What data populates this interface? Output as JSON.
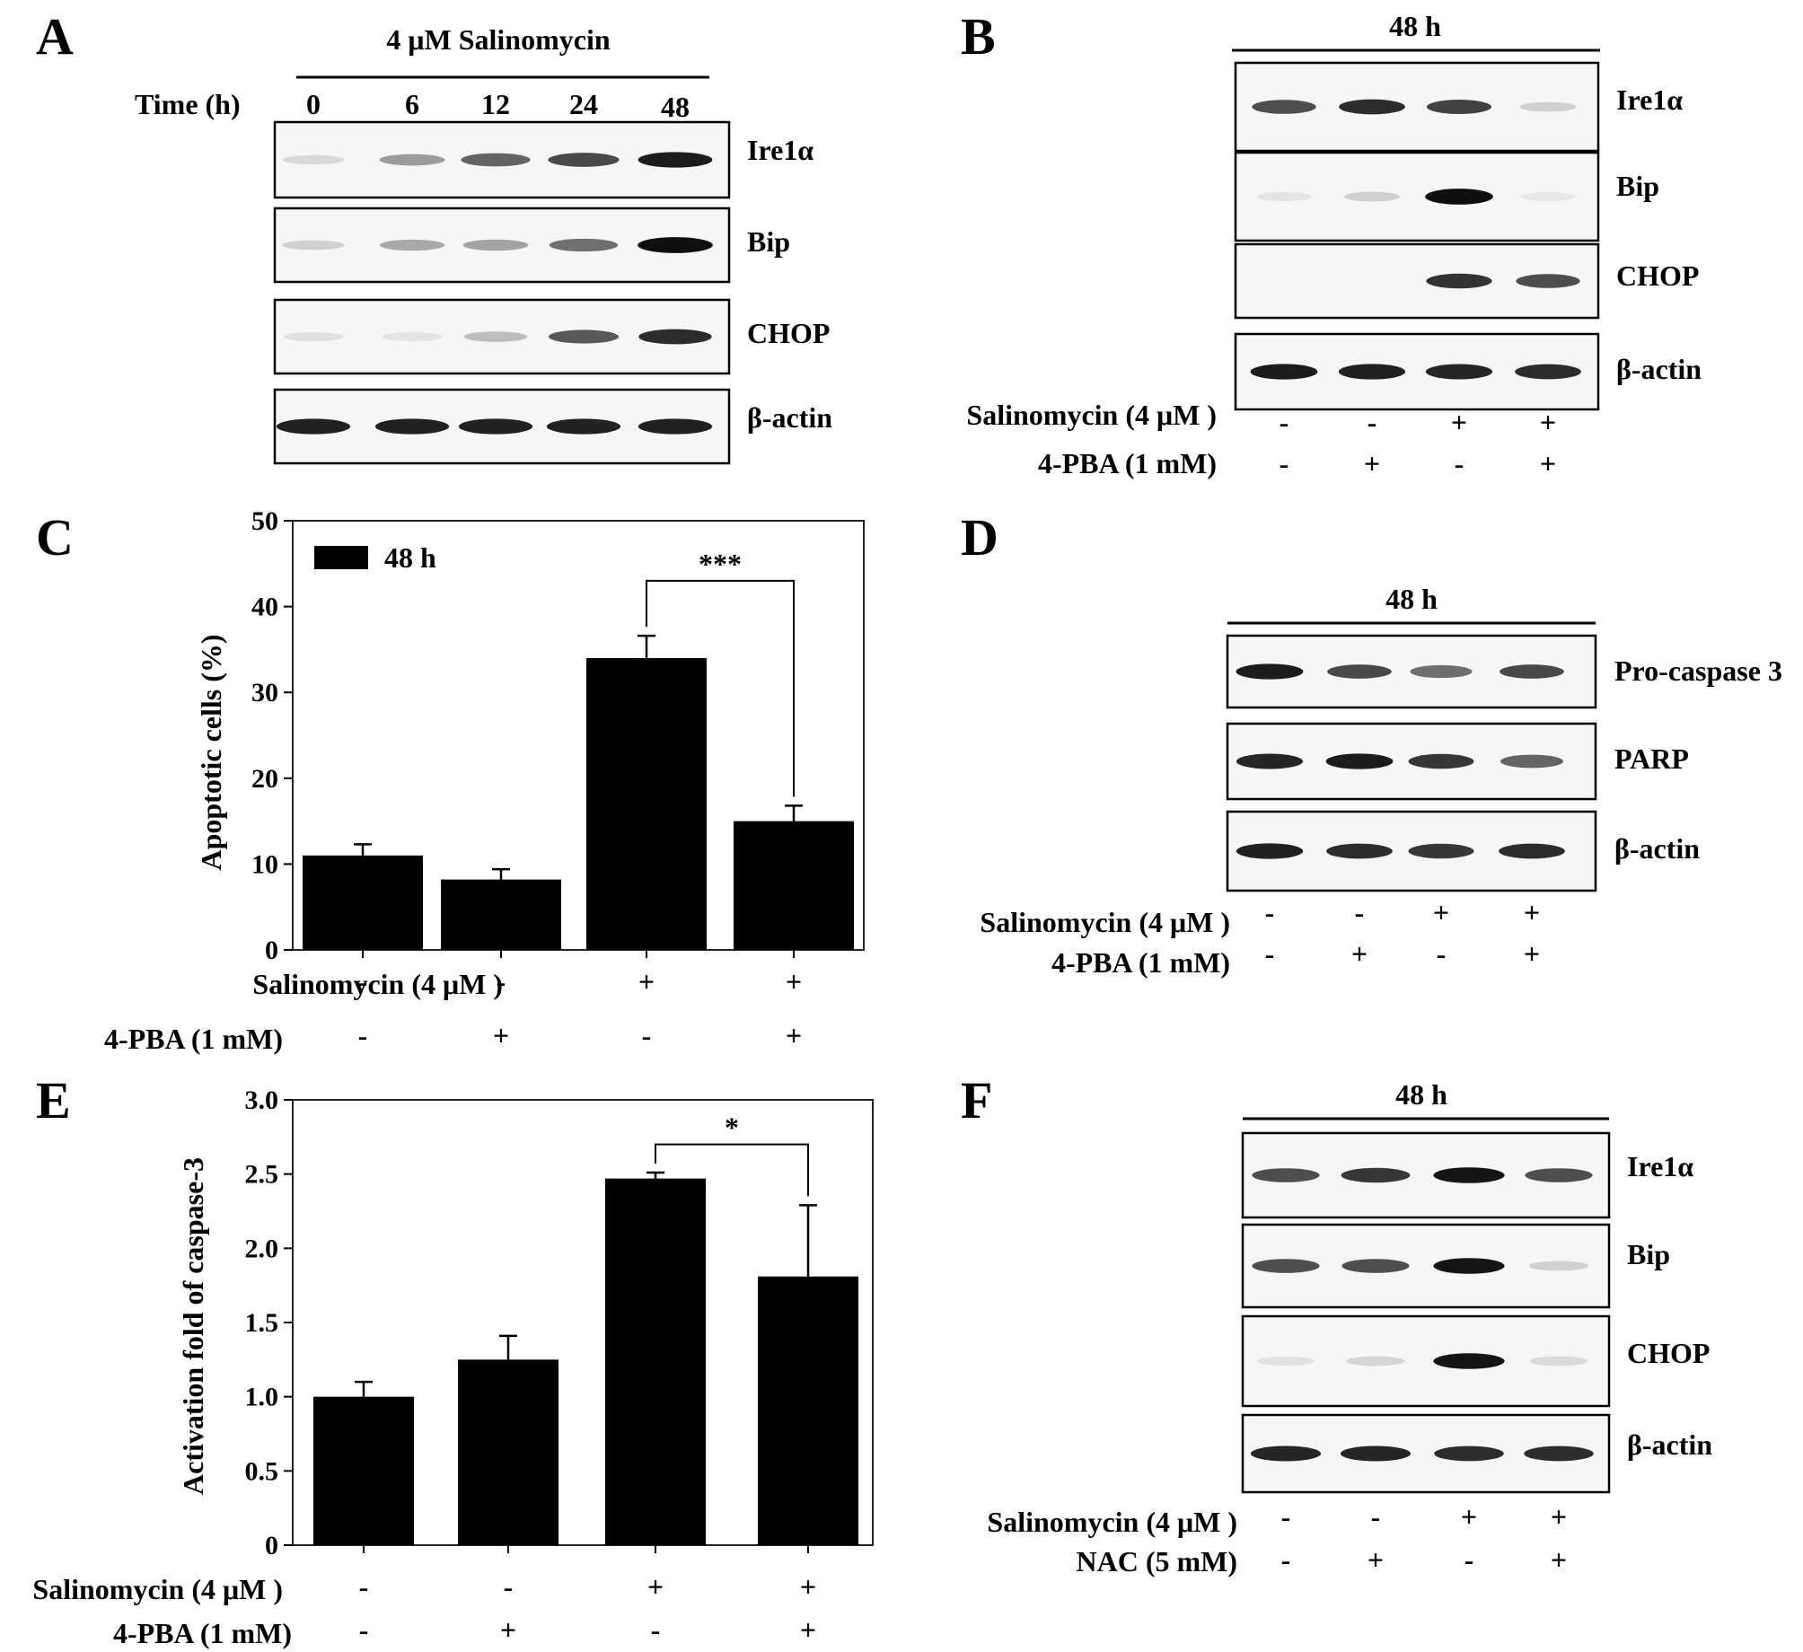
{
  "panels": {
    "A": {
      "letter": "A",
      "treatment": "4 μM  Salinomycin",
      "time_label": "Time (h)",
      "times": [
        "0",
        "6",
        "12",
        "24",
        "48"
      ],
      "rows": [
        "Ire1α",
        "Bip",
        "CHOP",
        "β-actin"
      ],
      "bands": [
        [
          0.08,
          0.35,
          0.6,
          0.72,
          0.92
        ],
        [
          0.12,
          0.3,
          0.32,
          0.55,
          0.98
        ],
        [
          0.05,
          0.03,
          0.2,
          0.65,
          0.85
        ],
        [
          0.9,
          0.9,
          0.9,
          0.9,
          0.9
        ]
      ]
    },
    "B": {
      "letter": "B",
      "time": "48 h",
      "rows": [
        "Ire1α",
        "Bip",
        "CHOP",
        "β-actin"
      ],
      "bands": [
        [
          0.7,
          0.85,
          0.75,
          0.12
        ],
        [
          0.03,
          0.12,
          0.98,
          0.02
        ],
        [
          0.0,
          0.0,
          0.82,
          0.7
        ],
        [
          0.92,
          0.9,
          0.88,
          0.85
        ]
      ],
      "treatments": [
        {
          "label": "Salinomycin (4 μM )",
          "signs": [
            "-",
            "-",
            "+",
            "+"
          ]
        },
        {
          "label": "4-PBA (1 mM)",
          "signs": [
            "-",
            "+",
            "-",
            "+"
          ]
        }
      ]
    },
    "C": {
      "letter": "C",
      "legend": "48 h",
      "significance": "***",
      "treatments": [
        {
          "label": "Salinomycin (4 μM )",
          "signs": [
            "-",
            "-",
            "+",
            "+"
          ]
        },
        {
          "label": "4-PBA (1 mM)",
          "signs": [
            "-",
            "+",
            "-",
            "+"
          ]
        }
      ]
    },
    "D": {
      "letter": "D",
      "time": "48 h",
      "rows": [
        "Pro-caspase 3",
        "PARP",
        "β-actin"
      ],
      "bands": [
        [
          0.92,
          0.72,
          0.55,
          0.72
        ],
        [
          0.88,
          0.92,
          0.8,
          0.6
        ],
        [
          0.9,
          0.85,
          0.8,
          0.85
        ]
      ],
      "treatments": [
        {
          "label": "Salinomycin (4 μM )",
          "signs": [
            "-",
            "-",
            "+",
            "+"
          ]
        },
        {
          "label": "4-PBA (1 mM)",
          "signs": [
            "-",
            "+",
            "-",
            "+"
          ]
        }
      ]
    },
    "E": {
      "letter": "E",
      "significance": "*",
      "treatments": [
        {
          "label": "Salinomycin (4 μM )",
          "signs": [
            "-",
            "-",
            "+",
            "+"
          ]
        },
        {
          "label": "4-PBA (1 mM)",
          "signs": [
            "-",
            "+",
            "-",
            "+"
          ]
        }
      ]
    },
    "F": {
      "letter": "F",
      "time": "48 h",
      "rows": [
        "Ire1α",
        "Bip",
        "CHOP",
        "β-actin"
      ],
      "bands": [
        [
          0.7,
          0.8,
          0.95,
          0.7
        ],
        [
          0.7,
          0.7,
          0.95,
          0.12
        ],
        [
          0.04,
          0.1,
          0.95,
          0.08
        ],
        [
          0.88,
          0.88,
          0.85,
          0.85
        ]
      ],
      "treatments": [
        {
          "label": "Salinomycin (4 μM )",
          "signs": [
            "-",
            "-",
            "+",
            "+"
          ]
        },
        {
          "label": "NAC (5 mM)",
          "signs": [
            "-",
            "+",
            "-",
            "+"
          ]
        }
      ]
    }
  },
  "chart_data": [
    {
      "panel": "C",
      "type": "bar",
      "categories": [
        "1",
        "2",
        "3",
        "4"
      ],
      "series": [
        {
          "name": "48 h",
          "values": [
            11,
            8.2,
            34,
            15
          ],
          "errors": [
            1.3,
            1.2,
            2.6,
            1.8
          ]
        }
      ],
      "ylabel": "Apoptotic cells (%)",
      "ylim": [
        0,
        50
      ],
      "yticks": [
        "0",
        "10",
        "20",
        "30",
        "40",
        "50"
      ],
      "legend": "top-left"
    },
    {
      "panel": "E",
      "type": "bar",
      "categories": [
        "1",
        "2",
        "3",
        "4"
      ],
      "series": [
        {
          "values": [
            1.0,
            1.25,
            2.47,
            1.81
          ],
          "errors": [
            0.1,
            0.16,
            0.04,
            0.48
          ]
        }
      ],
      "ylabel": "Activation fold of caspase-3",
      "ylim": [
        0,
        3.0
      ],
      "yticks": [
        "0",
        "0.5",
        "1.0",
        "1.5",
        "2.0",
        "2.5",
        "3.0"
      ]
    }
  ]
}
